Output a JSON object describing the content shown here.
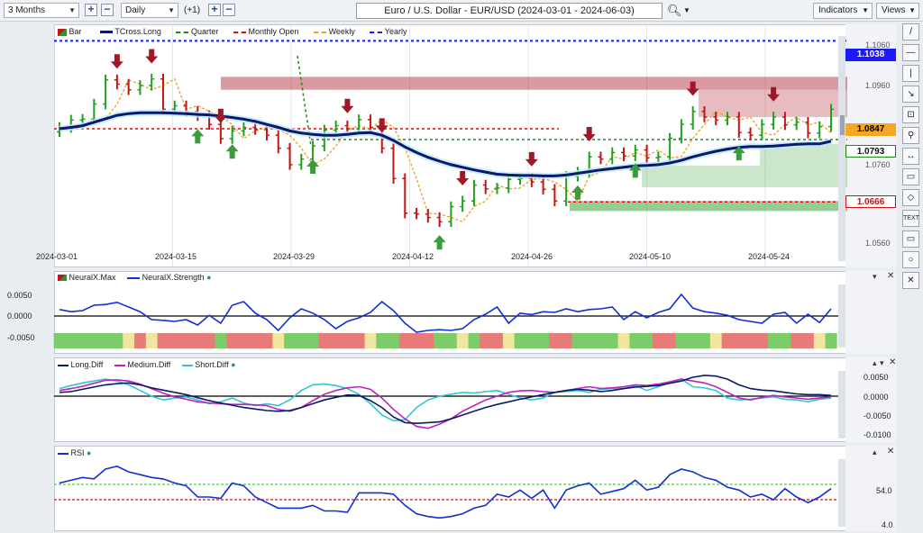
{
  "toolbar": {
    "period": "3 Months",
    "interval": "Daily",
    "offset": "(+1)",
    "title": "Euro / U.S. Dollar - EUR/USD (2024-03-01 - 2024-06-03)",
    "indicators_label": "Indicators",
    "views_label": "Views"
  },
  "legend": {
    "bar": "Bar",
    "tcross": "TCross.Long",
    "quarter": "Quarter",
    "monthly": "Monthly Open",
    "weekly": "Weekly",
    "yearly": "Yearly",
    "neuralx_max": "NeuralX.Max",
    "neuralx_strength": "NeuralX.Strength",
    "long_diff": "Long.Diff",
    "medium_diff": "Medium.Diff",
    "short_diff": "Short.Diff",
    "rsi": "RSI"
  },
  "price_axis": [
    "1.1060",
    "1.0960",
    "1.0760",
    "1.0560"
  ],
  "price_labels": {
    "yearly": "1.1038",
    "weekly": "1.0847",
    "tcross": "1.0793",
    "monthly": "1.0666"
  },
  "neural_axis": [
    "0.0050",
    "0.0000",
    "-0.0050"
  ],
  "diff_axis": [
    "0.0050",
    "0.0000",
    "-0.0050",
    "-0.0100"
  ],
  "rsi_axis": [
    "54.0",
    "4.0"
  ],
  "date_ticks": [
    "2024-03-01",
    "2024-03-15",
    "2024-03-29",
    "2024-04-12",
    "2024-04-26",
    "2024-05-10",
    "2024-05-24"
  ],
  "sidebar": [
    "/",
    "—",
    "|",
    "↘",
    "⊡",
    "⚲",
    "↔",
    "▭",
    "◇",
    "TEXT",
    "▭",
    "○",
    "✕"
  ],
  "colors": {
    "yearly": "#1a1aff",
    "monthly": "#d01010",
    "quarter": "#1a8a1a",
    "weekly": "#f0a020",
    "tcross": "#0a1a6a",
    "up_bar": "#1fa01f",
    "down_bar": "#c01818"
  },
  "chart_data": {
    "type": "bar",
    "title": "Euro / U.S. Dollar - EUR/USD (2024-03-01 - 2024-06-03)",
    "ylim": [
      1.055,
      1.107
    ],
    "closes": [
      1.0838,
      1.0855,
      1.0857,
      1.0892,
      1.0948,
      1.0938,
      1.0925,
      1.0935,
      1.095,
      1.088,
      1.0888,
      1.0875,
      1.0865,
      1.0845,
      1.0812,
      1.083,
      1.0838,
      1.0833,
      1.082,
      1.079,
      1.0752,
      1.0765,
      1.0795,
      1.0832,
      1.0842,
      1.0835,
      1.0856,
      1.0838,
      1.079,
      1.072,
      1.064,
      1.0638,
      1.063,
      1.062,
      1.0655,
      1.0668,
      1.0705,
      1.0696,
      1.0698,
      1.0718,
      1.072,
      1.0712,
      1.0695,
      1.0668,
      1.0725,
      1.0735,
      1.077,
      1.0765,
      1.078,
      1.0772,
      1.0786,
      1.0768,
      1.077,
      1.0813,
      1.0845,
      1.0875,
      1.0862,
      1.0855,
      1.0862,
      1.0826,
      1.082,
      1.0845,
      1.0862,
      1.0844,
      1.085,
      1.0825,
      1.084,
      1.088
    ],
    "tcross_long": [
      1.0835,
      1.0838,
      1.0842,
      1.085,
      1.0858,
      1.0866,
      1.087,
      1.0872,
      1.0872,
      1.0872,
      1.0871,
      1.087,
      1.0868,
      1.0867,
      1.0864,
      1.0861,
      1.0857,
      1.0852,
      1.0845,
      1.0838,
      1.083,
      1.0825,
      1.0822,
      1.082,
      1.082,
      1.0822,
      1.0825,
      1.0826,
      1.082,
      1.0808,
      1.0793,
      1.078,
      1.0769,
      1.076,
      1.0752,
      1.0746,
      1.074,
      1.0735,
      1.073,
      1.0728,
      1.0727,
      1.0727,
      1.0726,
      1.0726,
      1.0728,
      1.0732,
      1.0736,
      1.074,
      1.0743,
      1.0746,
      1.0749,
      1.075,
      1.0752,
      1.0756,
      1.0762,
      1.077,
      1.0777,
      1.0783,
      1.0788,
      1.0792,
      1.0794,
      1.0794,
      1.0795,
      1.0797,
      1.0799,
      1.08,
      1.08,
      1.0806
    ],
    "yearly": 1.1038,
    "monthly_open": 1.0666,
    "weekly": 1.0847,
    "tcross_current": 1.0793,
    "neuralx_strength": [
      0.0018,
      0.0012,
      0.0015,
      0.003,
      0.0032,
      0.0038,
      0.0025,
      0.0012,
      -0.001,
      -0.0012,
      -0.0015,
      -0.001,
      -0.0025,
      0.0002,
      -0.002,
      0.003,
      0.004,
      0.0008,
      -0.001,
      -0.004,
      -0.0005,
      0.002,
      0.0008,
      -0.001,
      -0.0035,
      -0.0015,
      -0.0005,
      0.001,
      0.004,
      0.0015,
      -0.002,
      -0.0045,
      -0.004,
      -0.0038,
      -0.004,
      -0.0035,
      -0.001,
      0.0005,
      0.0025,
      -0.002,
      0.0008,
      0.0004,
      0.0012,
      0.001,
      0.002,
      0.0012,
      0.0018,
      0.002,
      0.0025,
      -0.001,
      0.0012,
      -0.0005,
      0.001,
      0.002,
      0.006,
      0.0022,
      0.0012,
      0.0008,
      0.0002,
      -0.001,
      -0.0015,
      -0.002,
      0.0005,
      0.001,
      -0.002,
      0.0005,
      -0.0018,
      0.002
    ],
    "diff_long": [
      0.001,
      0.0012,
      0.0018,
      0.0024,
      0.003,
      0.0033,
      0.0035,
      0.003,
      0.0022,
      0.0016,
      0.001,
      0.0004,
      -0.0004,
      -0.0012,
      -0.0018,
      -0.0024,
      -0.003,
      -0.0034,
      -0.0038,
      -0.004,
      -0.0038,
      -0.003,
      -0.002,
      -0.001,
      -0.0003,
      0.0003,
      0.0002,
      -0.0012,
      -0.003,
      -0.0055,
      -0.007,
      -0.0072,
      -0.007,
      -0.0068,
      -0.006,
      -0.005,
      -0.004,
      -0.003,
      -0.0022,
      -0.0015,
      -0.0008,
      -0.0002,
      0.0004,
      0.001,
      0.0015,
      0.0018,
      0.0016,
      0.0012,
      0.0015,
      0.002,
      0.0024,
      0.0026,
      0.0028,
      0.0034,
      0.004,
      0.005,
      0.0055,
      0.0053,
      0.0045,
      0.003,
      0.002,
      0.0016,
      0.0014,
      0.001,
      0.0006,
      0.0004,
      0.0004,
      0.0002
    ],
    "diff_medium": [
      0.0015,
      0.002,
      0.0026,
      0.0034,
      0.0042,
      0.0043,
      0.004,
      0.0032,
      0.002,
      0.0008,
      -0.0002,
      -0.0008,
      -0.0015,
      -0.0018,
      -0.002,
      -0.0022,
      -0.0022,
      -0.0023,
      -0.0025,
      -0.0035,
      -0.004,
      -0.003,
      -0.0012,
      0.0005,
      0.0015,
      0.0022,
      0.0025,
      0.0018,
      -0.0005,
      -0.0035,
      -0.006,
      -0.008,
      -0.0085,
      -0.0074,
      -0.006,
      -0.004,
      -0.0025,
      -0.001,
      0.0,
      0.001,
      0.0014,
      0.0015,
      0.0012,
      0.001,
      0.0015,
      0.002,
      0.0025,
      0.002,
      0.0022,
      0.0025,
      0.003,
      0.0028,
      0.0032,
      0.0038,
      0.0045,
      0.004,
      0.0035,
      0.0025,
      0.001,
      -0.0005,
      -0.001,
      -0.0003,
      0.0002,
      -0.0002,
      -0.0005,
      -0.0008,
      -0.0005,
      -0.0002
    ],
    "diff_short": [
      0.002,
      0.0028,
      0.0035,
      0.004,
      0.0045,
      0.004,
      0.003,
      0.0015,
      0.0,
      -0.001,
      -0.0005,
      -0.0002,
      -0.001,
      -0.002,
      -0.0015,
      -0.0005,
      -0.0018,
      -0.0025,
      -0.002,
      -0.0025,
      -0.001,
      0.0015,
      0.003,
      0.0032,
      0.0028,
      0.002,
      0.0005,
      -0.002,
      -0.005,
      -0.0065,
      -0.0062,
      -0.003,
      -0.001,
      0.0,
      0.0005,
      0.001,
      0.0008,
      0.0012,
      0.0015,
      0.0005,
      -0.0005,
      -0.001,
      -0.0005,
      0.001,
      0.0012,
      0.0015,
      0.001,
      0.0018,
      0.002,
      0.002,
      0.0028,
      0.0015,
      0.0025,
      0.0035,
      0.0045,
      0.0025,
      0.0022,
      0.0015,
      -0.0005,
      -0.001,
      -0.0008,
      -0.0005,
      -0.0002,
      -0.0008,
      -0.001,
      -0.0015,
      -0.0008,
      -0.0005
    ],
    "rsi": [
      60,
      62,
      64,
      63,
      70,
      72,
      68,
      66,
      64,
      63,
      60,
      58,
      50,
      50,
      49,
      60,
      58,
      50,
      46,
      42,
      42,
      42,
      44,
      40,
      40,
      39,
      53,
      53,
      53,
      52,
      44,
      38,
      36,
      35,
      36,
      38,
      42,
      44,
      52,
      50,
      55,
      49,
      55,
      42,
      55,
      58,
      60,
      52,
      54,
      56,
      62,
      55,
      57,
      66,
      70,
      68,
      64,
      62,
      57,
      55,
      50,
      52,
      48,
      56,
      50,
      46,
      50,
      56
    ],
    "neuralx_state_colors": [
      "g",
      "g",
      "g",
      "g",
      "g",
      "g",
      "y",
      "r",
      "y",
      "r",
      "r",
      "r",
      "r",
      "r",
      "g",
      "r",
      "r",
      "r",
      "r",
      "y",
      "g",
      "g",
      "g",
      "r",
      "r",
      "r",
      "r",
      "y",
      "g",
      "g",
      "r",
      "r",
      "r",
      "g",
      "g",
      "y",
      "g",
      "r",
      "r",
      "y",
      "g",
      "g",
      "g",
      "r",
      "r",
      "g",
      "g",
      "g",
      "g",
      "y",
      "g",
      "g",
      "r",
      "r",
      "g",
      "g",
      "g",
      "y",
      "r",
      "r",
      "r",
      "r",
      "g",
      "g",
      "r",
      "r",
      "y",
      "g"
    ]
  }
}
